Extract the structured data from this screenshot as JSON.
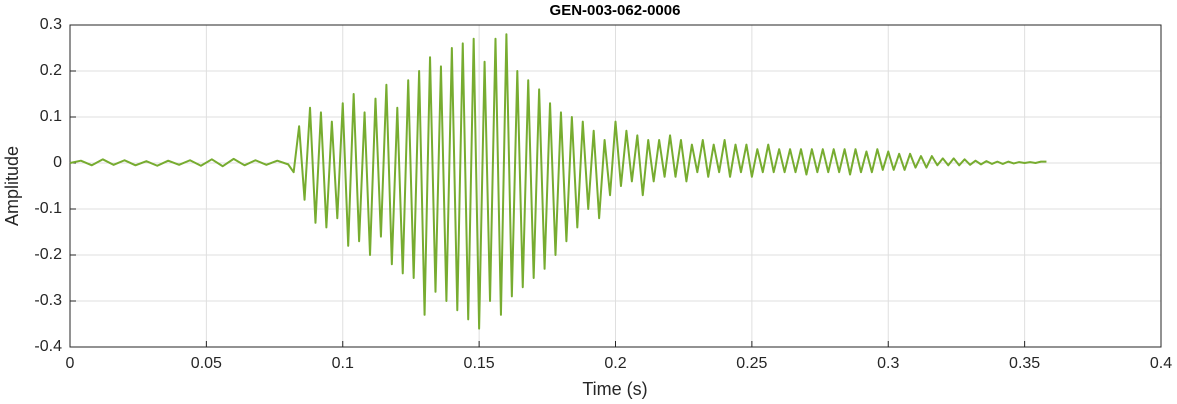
{
  "chart_data": {
    "type": "line",
    "title": "GEN-003-062-0006",
    "x_label": "Time (s)",
    "y_label": "Amplitude",
    "color": "#77ac30",
    "grid": true,
    "xlim": [
      0,
      0.4
    ],
    "xticks": [
      0,
      0.05,
      0.1,
      0.15,
      0.2,
      0.25,
      0.3,
      0.35,
      0.4
    ],
    "ylim": [
      -0.4,
      0.3
    ],
    "yticks": [
      -0.4,
      -0.3,
      -0.2,
      -0.1,
      0,
      0.1,
      0.2,
      0.3
    ],
    "x": [
      0,
      0.004,
      0.008,
      0.012,
      0.016,
      0.02,
      0.024,
      0.028,
      0.032,
      0.036,
      0.04,
      0.044,
      0.048,
      0.052,
      0.056,
      0.06,
      0.064,
      0.068,
      0.072,
      0.076,
      0.08,
      0.082,
      0.084,
      0.086,
      0.088,
      0.09,
      0.092,
      0.094,
      0.096,
      0.098,
      0.1,
      0.102,
      0.104,
      0.106,
      0.108,
      0.11,
      0.112,
      0.114,
      0.116,
      0.118,
      0.12,
      0.122,
      0.124,
      0.126,
      0.128,
      0.13,
      0.132,
      0.134,
      0.136,
      0.138,
      0.14,
      0.142,
      0.144,
      0.146,
      0.148,
      0.15,
      0.152,
      0.154,
      0.156,
      0.158,
      0.16,
      0.162,
      0.164,
      0.166,
      0.168,
      0.17,
      0.172,
      0.174,
      0.176,
      0.178,
      0.18,
      0.182,
      0.184,
      0.186,
      0.188,
      0.19,
      0.192,
      0.194,
      0.196,
      0.198,
      0.2,
      0.202,
      0.204,
      0.206,
      0.208,
      0.21,
      0.212,
      0.214,
      0.216,
      0.218,
      0.22,
      0.222,
      0.224,
      0.226,
      0.228,
      0.23,
      0.232,
      0.234,
      0.236,
      0.238,
      0.24,
      0.242,
      0.244,
      0.246,
      0.248,
      0.25,
      0.252,
      0.254,
      0.256,
      0.258,
      0.26,
      0.262,
      0.264,
      0.266,
      0.268,
      0.27,
      0.272,
      0.274,
      0.276,
      0.278,
      0.28,
      0.282,
      0.284,
      0.286,
      0.288,
      0.29,
      0.292,
      0.294,
      0.296,
      0.298,
      0.3,
      0.302,
      0.304,
      0.306,
      0.308,
      0.31,
      0.312,
      0.314,
      0.316,
      0.318,
      0.32,
      0.322,
      0.324,
      0.326,
      0.328,
      0.33,
      0.332,
      0.334,
      0.336,
      0.338,
      0.34,
      0.342,
      0.344,
      0.346,
      0.348,
      0.35,
      0.352,
      0.354,
      0.356,
      0.358
    ],
    "values": [
      0,
      0.005,
      -0.005,
      0.008,
      -0.004,
      0.006,
      -0.005,
      0.004,
      -0.006,
      0.005,
      -0.004,
      0.006,
      -0.006,
      0.008,
      -0.007,
      0.009,
      -0.005,
      0.006,
      -0.004,
      0.005,
      -0.003,
      -0.02,
      0.08,
      -0.08,
      0.12,
      -0.13,
      0.11,
      -0.14,
      0.09,
      -0.12,
      0.13,
      -0.18,
      0.15,
      -0.17,
      0.11,
      -0.2,
      0.14,
      -0.16,
      0.17,
      -0.22,
      0.12,
      -0.24,
      0.18,
      -0.25,
      0.2,
      -0.33,
      0.23,
      -0.28,
      0.21,
      -0.3,
      0.25,
      -0.32,
      0.26,
      -0.34,
      0.27,
      -0.36,
      0.22,
      -0.3,
      0.27,
      -0.33,
      0.28,
      -0.29,
      0.2,
      -0.27,
      0.18,
      -0.25,
      0.16,
      -0.23,
      0.13,
      -0.2,
      0.11,
      -0.17,
      0.1,
      -0.14,
      0.09,
      -0.1,
      0.07,
      -0.12,
      0.05,
      -0.07,
      0.09,
      -0.05,
      0.07,
      -0.04,
      0.06,
      -0.07,
      0.05,
      -0.04,
      0.05,
      -0.03,
      0.06,
      -0.03,
      0.05,
      -0.04,
      0.04,
      -0.02,
      0.05,
      -0.03,
      0.04,
      -0.02,
      0.05,
      -0.03,
      0.04,
      -0.02,
      0.04,
      -0.03,
      0.03,
      -0.02,
      0.04,
      -0.02,
      0.03,
      -0.02,
      0.03,
      -0.02,
      0.03,
      -0.025,
      0.03,
      -0.02,
      0.03,
      -0.02,
      0.03,
      -0.02,
      0.03,
      -0.025,
      0.03,
      -0.02,
      0.025,
      -0.02,
      0.03,
      -0.015,
      0.025,
      -0.015,
      0.02,
      -0.015,
      0.02,
      -0.01,
      0.015,
      -0.01,
      0.015,
      -0.005,
      0.01,
      -0.005,
      0.01,
      -0.005,
      0.008,
      -0.004,
      0.005,
      -0.003,
      0.004,
      -0.002,
      0.003,
      -0.002,
      0.003,
      -0.001,
      0.002,
      0,
      0.002,
      0,
      0.003,
      0.003
    ]
  }
}
